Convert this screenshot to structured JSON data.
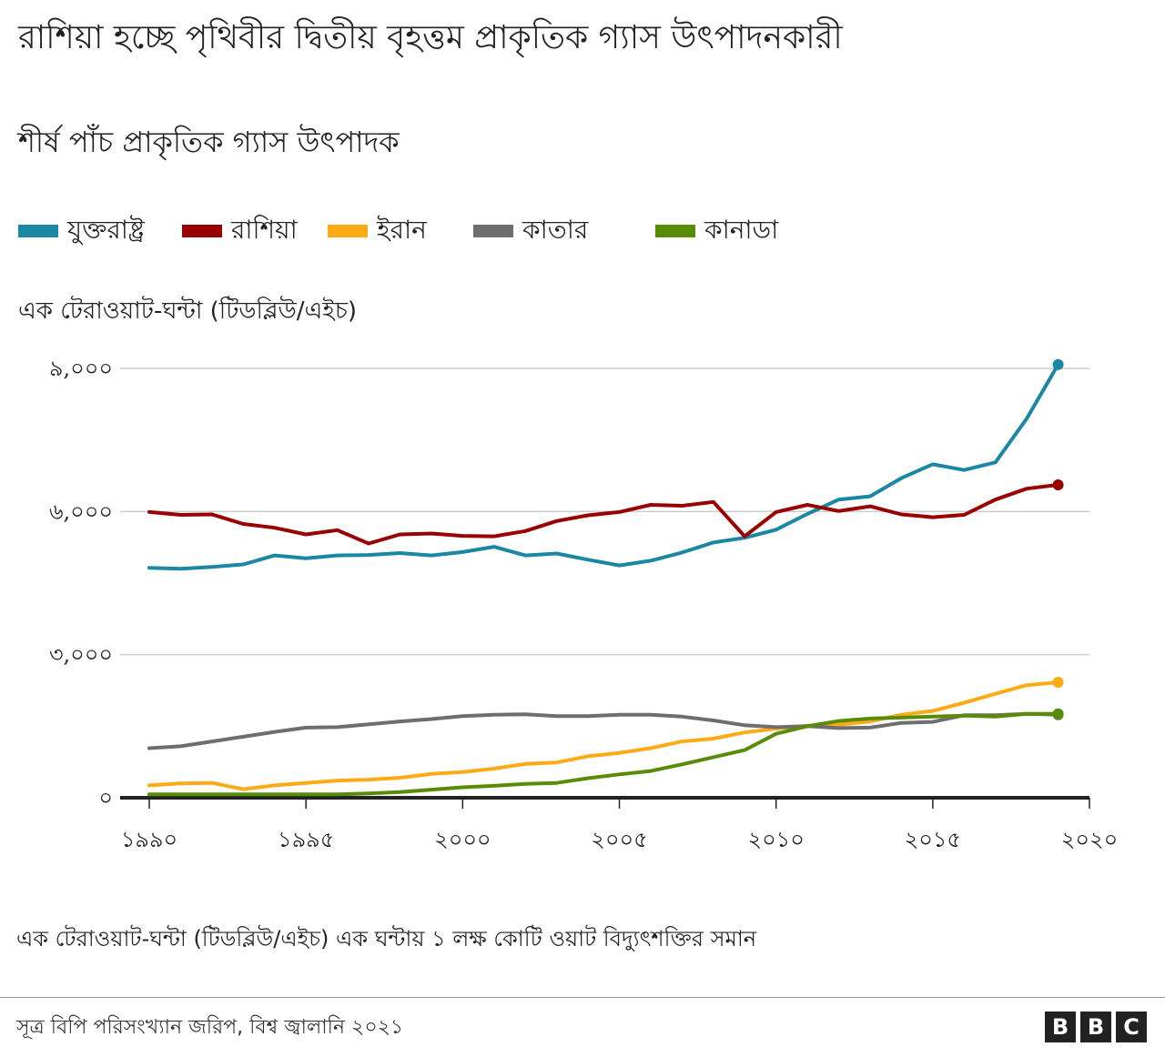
{
  "title": "রাশিয়া হচ্ছে পৃথিবীর দ্বিতীয় বৃহত্তম প্রাকৃতিক গ্যাস উৎপাদনকারী",
  "subtitle": "শীর্ষ পাঁচ প্রাকৃতিক গ্যাস উৎপাদক",
  "unit_label": "এক টেরাওয়াট-ঘন্টা (টিডব্লিউ/এইচ)",
  "footnote": "এক টেরাওয়াট-ঘন্টা (টিডব্লিউ/এইচ) এক ঘন্টায় ১ লক্ষ কোটি ওয়াট বিদ্যুৎশক্তির সমান",
  "source": "সূত্র বিপি পরিসংখ্যান জরিপ, বিশ্ব জ্বালানি ২০২১",
  "logo": [
    "B",
    "B",
    "C"
  ],
  "chart_data": {
    "type": "line",
    "title": "রাশিয়া হচ্ছে পৃথিবীর দ্বিতীয় বৃহত্তম প্রাকৃতিক গ্যাস উৎপাদনকারী",
    "subtitle": "শীর্ষ পাঁচ প্রাকৃতিক গ্যাস উৎপাদক",
    "ylabel": "এক টেরাওয়াট-ঘন্টা (টিডব্লিউ/এইচ)",
    "xlabel": "",
    "xlim": [
      1990,
      2020
    ],
    "ylim": [
      0,
      9000
    ],
    "x_ticks": [
      {
        "value": 1990,
        "label": "১৯৯০"
      },
      {
        "value": 1995,
        "label": "১৯৯৫"
      },
      {
        "value": 2000,
        "label": "২০০০"
      },
      {
        "value": 2005,
        "label": "২০০৫"
      },
      {
        "value": 2010,
        "label": "২০১০"
      },
      {
        "value": 2015,
        "label": "২০১৫"
      },
      {
        "value": 2020,
        "label": "২০২০"
      }
    ],
    "y_ticks": [
      {
        "value": 0,
        "label": "০"
      },
      {
        "value": 3000,
        "label": "৩,০০০"
      },
      {
        "value": 6000,
        "label": "৬,০০০"
      },
      {
        "value": 9000,
        "label": "৯,০০০"
      }
    ],
    "grid": true,
    "legend_position": "top",
    "x": [
      1990,
      1991,
      1992,
      1993,
      1994,
      1995,
      1996,
      1997,
      1998,
      1999,
      2000,
      2001,
      2002,
      2003,
      2004,
      2005,
      2006,
      2007,
      2008,
      2009,
      2010,
      2011,
      2012,
      2013,
      2014,
      2015,
      2016,
      2017,
      2018,
      2019
    ],
    "series": [
      {
        "name": "যুক্তরাষ্ট্র",
        "color": "#1a87a4",
        "values": [
          4820,
          4800,
          4840,
          4890,
          5080,
          5020,
          5080,
          5090,
          5130,
          5080,
          5150,
          5260,
          5080,
          5120,
          4990,
          4870,
          4970,
          5140,
          5350,
          5450,
          5620,
          5950,
          6250,
          6320,
          6700,
          6990,
          6870,
          7030,
          7950,
          9080
        ]
      },
      {
        "name": "রাশিয়া",
        "color": "#990000",
        "values": [
          5990,
          5930,
          5940,
          5740,
          5660,
          5520,
          5610,
          5330,
          5520,
          5540,
          5490,
          5480,
          5590,
          5800,
          5920,
          5990,
          6140,
          6120,
          6200,
          5480,
          5990,
          6140,
          6010,
          6110,
          5940,
          5880,
          5930,
          6250,
          6480,
          6560
        ]
      },
      {
        "name": "ইরান",
        "color": "#fcab16",
        "values": [
          260,
          300,
          310,
          180,
          260,
          310,
          360,
          380,
          420,
          500,
          540,
          610,
          710,
          740,
          870,
          940,
          1040,
          1180,
          1240,
          1370,
          1450,
          1510,
          1530,
          1600,
          1740,
          1820,
          1990,
          2180,
          2360,
          2420
        ]
      },
      {
        "name": "কাতার",
        "color": "#6e6e6e",
        "values": [
          1040,
          1080,
          1180,
          1280,
          1380,
          1470,
          1480,
          1540,
          1600,
          1650,
          1710,
          1740,
          1750,
          1710,
          1710,
          1740,
          1740,
          1700,
          1620,
          1520,
          1480,
          1500,
          1460,
          1470,
          1570,
          1590,
          1730,
          1730,
          1760,
          1740
        ]
      },
      {
        "name": "কানাডা",
        "color": "#588c07",
        "values": [
          70,
          70,
          70,
          70,
          70,
          70,
          70,
          90,
          120,
          170,
          220,
          250,
          290,
          310,
          410,
          490,
          560,
          700,
          850,
          1000,
          1340,
          1500,
          1610,
          1660,
          1680,
          1700,
          1720,
          1700,
          1760,
          1760
        ]
      }
    ]
  }
}
